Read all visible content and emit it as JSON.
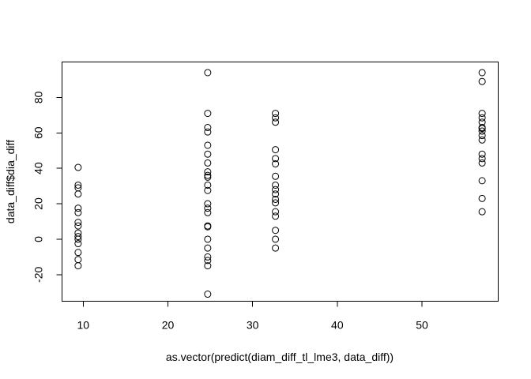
{
  "chart_data": {
    "type": "scatter",
    "title": "",
    "xlabel": "as.vector(predict(diam_diff_tl_lme3, data_diff))",
    "ylabel": "data_diff$dia_diff",
    "xlim": [
      7.5,
      59
    ],
    "ylim": [
      -35,
      100
    ],
    "xticks": [
      10,
      20,
      30,
      40,
      50
    ],
    "yticks": [
      -20,
      0,
      20,
      40,
      60,
      80
    ],
    "grid": false,
    "legend": "none",
    "marker": "open-circle",
    "color": "#000000",
    "points": [
      {
        "x": 9.4,
        "y": 40.5
      },
      {
        "x": 9.4,
        "y": 30.5
      },
      {
        "x": 9.4,
        "y": 29.0
      },
      {
        "x": 9.4,
        "y": 25.5
      },
      {
        "x": 9.4,
        "y": 17.5
      },
      {
        "x": 9.4,
        "y": 15.0
      },
      {
        "x": 9.4,
        "y": 9.5
      },
      {
        "x": 9.4,
        "y": 7.5
      },
      {
        "x": 9.4,
        "y": 3.5
      },
      {
        "x": 9.4,
        "y": 1.5
      },
      {
        "x": 9.4,
        "y": 0.0
      },
      {
        "x": 9.4,
        "y": -2.5
      },
      {
        "x": 9.4,
        "y": -7.5
      },
      {
        "x": 9.4,
        "y": -11.5
      },
      {
        "x": 9.4,
        "y": -15.0
      },
      {
        "x": 24.7,
        "y": 94.0
      },
      {
        "x": 24.7,
        "y": 71.0
      },
      {
        "x": 24.7,
        "y": 63.0
      },
      {
        "x": 24.7,
        "y": 60.5
      },
      {
        "x": 24.7,
        "y": 53.0
      },
      {
        "x": 24.7,
        "y": 48.0
      },
      {
        "x": 24.7,
        "y": 43.0
      },
      {
        "x": 24.7,
        "y": 38.0
      },
      {
        "x": 24.7,
        "y": 36.0
      },
      {
        "x": 24.7,
        "y": 35.0
      },
      {
        "x": 24.7,
        "y": 30.5
      },
      {
        "x": 24.7,
        "y": 27.5
      },
      {
        "x": 24.7,
        "y": 20.0
      },
      {
        "x": 24.7,
        "y": 17.5
      },
      {
        "x": 24.7,
        "y": 15.0
      },
      {
        "x": 24.7,
        "y": 7.5
      },
      {
        "x": 24.7,
        "y": 7.0
      },
      {
        "x": 24.7,
        "y": 0.0
      },
      {
        "x": 24.7,
        "y": -5.0
      },
      {
        "x": 24.7,
        "y": -10.0
      },
      {
        "x": 24.7,
        "y": -12.0
      },
      {
        "x": 24.7,
        "y": -15.0
      },
      {
        "x": 24.7,
        "y": -31.0
      },
      {
        "x": 32.7,
        "y": 71.0
      },
      {
        "x": 32.7,
        "y": 68.5
      },
      {
        "x": 32.7,
        "y": 66.0
      },
      {
        "x": 32.7,
        "y": 50.5
      },
      {
        "x": 32.7,
        "y": 45.5
      },
      {
        "x": 32.7,
        "y": 42.5
      },
      {
        "x": 32.7,
        "y": 35.5
      },
      {
        "x": 32.7,
        "y": 30.5
      },
      {
        "x": 32.7,
        "y": 28.0
      },
      {
        "x": 32.7,
        "y": 25.5
      },
      {
        "x": 32.7,
        "y": 22.5
      },
      {
        "x": 32.7,
        "y": 20.5
      },
      {
        "x": 32.7,
        "y": 15.5
      },
      {
        "x": 32.7,
        "y": 13.0
      },
      {
        "x": 32.7,
        "y": 5.0
      },
      {
        "x": 32.7,
        "y": 0.0
      },
      {
        "x": 32.7,
        "y": -5.0
      },
      {
        "x": 57.1,
        "y": 94.0
      },
      {
        "x": 57.1,
        "y": 89.0
      },
      {
        "x": 57.1,
        "y": 71.0
      },
      {
        "x": 57.1,
        "y": 68.5
      },
      {
        "x": 57.1,
        "y": 66.0
      },
      {
        "x": 57.1,
        "y": 63.0
      },
      {
        "x": 57.1,
        "y": 62.5
      },
      {
        "x": 57.1,
        "y": 61.0
      },
      {
        "x": 57.1,
        "y": 58.5
      },
      {
        "x": 57.1,
        "y": 56.0
      },
      {
        "x": 57.1,
        "y": 48.0
      },
      {
        "x": 57.1,
        "y": 45.5
      },
      {
        "x": 57.1,
        "y": 43.0
      },
      {
        "x": 57.1,
        "y": 33.0
      },
      {
        "x": 57.1,
        "y": 23.0
      },
      {
        "x": 57.1,
        "y": 15.5
      }
    ]
  }
}
